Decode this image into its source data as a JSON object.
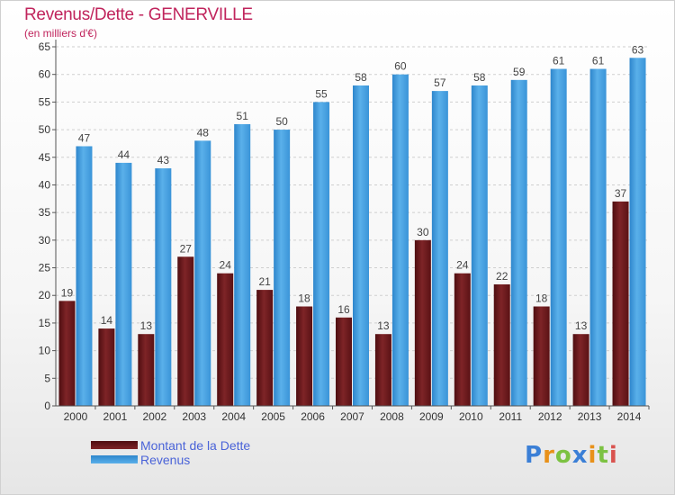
{
  "title": "Revenus/Dette - GENERVILLE",
  "subtitle": "(en milliers d'€)",
  "logo_text": "Proxiti",
  "colors": {
    "dette": "#7a1f22",
    "revenus": "#3c9be0",
    "title": "#c0245c",
    "legend_text": "#4a63d8"
  },
  "chart_data": {
    "type": "bar",
    "categories": [
      "2000",
      "2001",
      "2002",
      "2003",
      "2004",
      "2005",
      "2006",
      "2007",
      "2008",
      "2009",
      "2010",
      "2011",
      "2012",
      "2013",
      "2014"
    ],
    "series": [
      {
        "name": "Montant de la Dette",
        "values": [
          19,
          14,
          13,
          27,
          24,
          21,
          18,
          16,
          13,
          30,
          24,
          22,
          18,
          13,
          37
        ]
      },
      {
        "name": "Revenus",
        "values": [
          47,
          44,
          43,
          48,
          51,
          50,
          55,
          58,
          60,
          57,
          58,
          59,
          61,
          61,
          63
        ]
      }
    ],
    "ylim": [
      0,
      65
    ],
    "yticks": [
      0,
      5,
      10,
      15,
      20,
      25,
      30,
      35,
      40,
      45,
      50,
      55,
      60,
      65
    ],
    "grid": true,
    "legend_position": "bottom-left"
  }
}
